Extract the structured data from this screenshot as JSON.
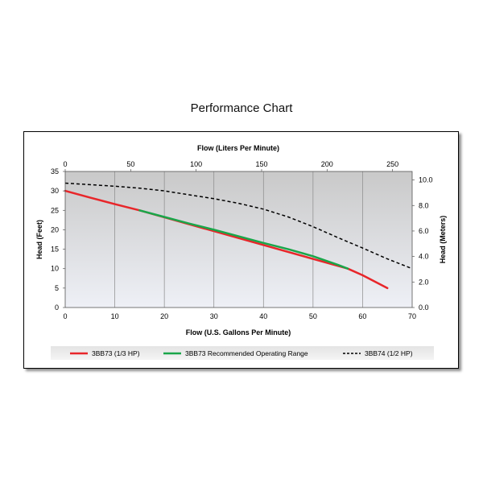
{
  "chart_data": {
    "type": "line",
    "title": "Performance Chart",
    "x_bottom": {
      "label": "Flow (U.S. Gallons Per Minute)",
      "range": [
        0,
        70
      ],
      "ticks": [
        0,
        10,
        20,
        30,
        40,
        50,
        60,
        70
      ]
    },
    "x_top": {
      "label": "Flow (Liters Per Minute)",
      "ticks": [
        0,
        50,
        100,
        150,
        200,
        250
      ]
    },
    "y_left": {
      "label": "Head (Feet)",
      "range": [
        0,
        35
      ],
      "ticks": [
        0,
        5,
        10,
        15,
        20,
        25,
        30,
        35
      ]
    },
    "y_right": {
      "label": "Head (Meters)",
      "ticks": [
        "0.0",
        "2.0",
        "4.0",
        "6.0",
        "8.0",
        "10.0"
      ]
    },
    "grid": "vertical",
    "legend_position": "bottom",
    "series": [
      {
        "name": "3BB73 (1/3 HP)",
        "color": "#e8262a",
        "style": "solid",
        "x": [
          0,
          5,
          10,
          15,
          57,
          60,
          65
        ],
        "y": [
          30,
          28.3,
          26.6,
          25,
          10,
          8.3,
          5
        ]
      },
      {
        "name": "3BB73 Recommended Operating Range",
        "color": "#1aa64a",
        "style": "solid",
        "x": [
          15,
          20,
          25,
          30,
          35,
          40,
          45,
          50,
          55,
          57
        ],
        "y": [
          25,
          23.3,
          21.6,
          20,
          18.3,
          16.6,
          15,
          13.2,
          11,
          10
        ]
      },
      {
        "name": "3BB74 (1/2 HP)",
        "color": "#000000",
        "style": "dashed",
        "x": [
          0,
          5,
          10,
          15,
          20,
          25,
          30,
          35,
          40,
          45,
          50,
          55,
          60,
          65,
          70
        ],
        "y": [
          32,
          31.6,
          31.2,
          30.7,
          30,
          29,
          28,
          26.8,
          25.3,
          23.3,
          20.8,
          18,
          15.3,
          12.5,
          10
        ]
      }
    ]
  }
}
